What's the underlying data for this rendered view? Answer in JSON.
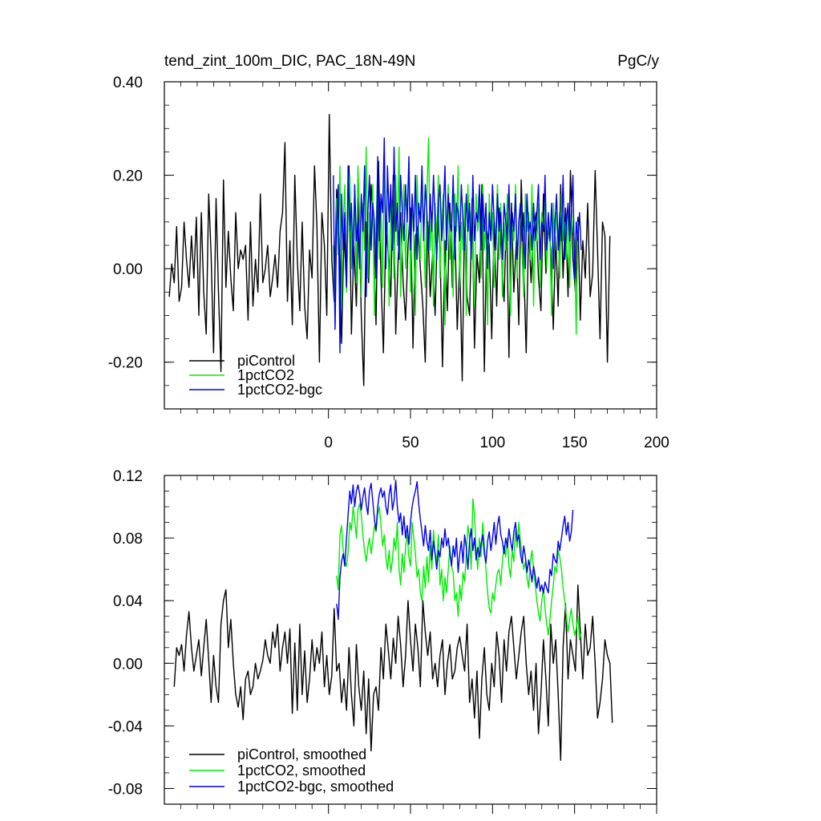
{
  "chart_data": [
    {
      "type": "line",
      "title": "tend_zint_100m_DIC, PAC_18N-49N",
      "units_label": "PgC/y",
      "xlim": [
        -100,
        200
      ],
      "ylim": [
        -0.3,
        0.4
      ],
      "x_ticks": [
        0,
        50,
        100,
        150,
        200
      ],
      "y_ticks": [
        -0.2,
        0.0,
        0.2,
        0.4
      ],
      "x_tick_labels": [
        "0",
        "50",
        "100",
        "150",
        "200"
      ],
      "y_tick_labels": [
        "-0.20",
        "0.00",
        "0.20",
        "0.40"
      ],
      "legend": [
        "piControl",
        "1pctCO2",
        "1pctCO2-bgc"
      ],
      "series": [
        {
          "name": "piControl",
          "color": "#000000",
          "x_start": -97,
          "x_step": 1.5,
          "values": [
            -0.06,
            0.01,
            -0.03,
            0.09,
            -0.07,
            -0.04,
            0.1,
            0.02,
            -0.04,
            0.07,
            -0.02,
            0.11,
            -0.1,
            0.12,
            -0.05,
            -0.14,
            0.16,
            0.03,
            -0.18,
            0.15,
            -0.05,
            -0.22,
            0.19,
            -0.04,
            0.08,
            -0.02,
            -0.09,
            0.12,
            0.0,
            0.04,
            0.02,
            0.05,
            -0.11,
            0.1,
            -0.08,
            0.02,
            -0.05,
            0.16,
            -0.03,
            0.0,
            0.05,
            -0.06,
            -0.02,
            0.03,
            -0.04,
            0.08,
            0.12,
            0.27,
            -0.07,
            0.06,
            -0.12,
            0.2,
            0.02,
            -0.09,
            0.1,
            -0.08,
            -0.15,
            0.04,
            -0.02,
            0.22,
            0.09,
            -0.2,
            0.12,
            0.05,
            -0.1,
            0.33,
            0.02,
            -0.07,
            0.17,
            0.06,
            -0.16,
            0.08,
            -0.04,
            0.22,
            -0.14,
            0.05,
            -0.08,
            0.16,
            -0.1,
            -0.25,
            0.1,
            -0.03,
            0.18,
            0.08,
            -0.12,
            0.23,
            -0.02,
            -0.18,
            0.09,
            0.03,
            -0.06,
            0.2,
            -0.14,
            0.02,
            0.12,
            -0.03,
            -0.11,
            0.05,
            0.13,
            -0.17,
            0.07,
            0.09,
            0.0,
            -0.08,
            -0.2,
            0.1,
            -0.06,
            0.03,
            -0.1,
            0.11,
            0.04,
            -0.21,
            0.06,
            -0.09,
            0.14,
            -0.04,
            0.09,
            -0.13,
            0.02,
            -0.24,
            0.12,
            -0.06,
            -0.1,
            0.15,
            -0.17,
            0.03,
            -0.03,
            0.18,
            -0.22,
            0.08,
            0.05,
            -0.15,
            0.1,
            -0.08,
            0.13,
            0.02,
            -0.07,
            0.12,
            -0.19,
            0.14,
            -0.05,
            0.06,
            -0.12,
            0.19,
            0.01,
            -0.18,
            0.09,
            -0.03,
            0.08,
            0.12,
            -0.02,
            -0.09,
            0.16,
            -0.01,
            0.09,
            0.04,
            -0.13,
            0.07,
            -0.08,
            0.18,
            -0.02,
            0.13,
            -0.06,
            0.21,
            0.02,
            -0.05,
            0.11,
            -0.11,
            0.06,
            -0.02,
            0.14,
            -0.06,
            -0.01,
            0.21,
            0.04,
            -0.15,
            0.1,
            0.07,
            -0.2,
            0.07
          ]
        },
        {
          "name": "1pctCO2",
          "color": "#00ee00",
          "x_start": 3,
          "x_step": 1,
          "values": [
            0.05,
            -0.12,
            0.15,
            0.03,
            0.22,
            -0.08,
            0.1,
            0.18,
            -0.05,
            0.12,
            0.2,
            0.0,
            0.08,
            0.16,
            -0.03,
            0.22,
            0.1,
            -0.06,
            0.14,
            0.04,
            0.26,
            -0.02,
            0.12,
            0.05,
            0.18,
            -0.1,
            0.08,
            0.22,
            0.02,
            0.14,
            -0.04,
            0.24,
            0.06,
            0.1,
            -0.08,
            0.16,
            0.12,
            -0.02,
            0.2,
            0.05,
            0.26,
            -0.06,
            0.08,
            0.18,
            0.0,
            0.12,
            0.23,
            -0.05,
            0.15,
            0.06,
            -0.1,
            0.2,
            0.08,
            0.02,
            0.18,
            0.1,
            -0.04,
            0.16,
            0.28,
            0.04,
            0.12,
            -0.08,
            0.14,
            0.06,
            0.2,
            -0.02,
            0.1,
            0.16,
            -0.12,
            0.08,
            0.18,
            0.02,
            0.12,
            -0.06,
            0.16,
            0.08,
            0.22,
            -0.04,
            0.1,
            0.04,
            0.14,
            -0.1,
            0.18,
            0.06,
            0.12,
            0.02,
            -0.08,
            0.16,
            0.08,
            0.14,
            -0.02,
            0.18,
            0.04,
            0.1,
            -0.12,
            0.16,
            0.06,
            0.12,
            -0.04,
            0.08,
            0.18,
            0.02,
            0.14,
            -0.06,
            0.1,
            0.04,
            0.16,
            0.08,
            -0.1,
            0.12,
            0.06,
            0.18,
            -0.02,
            0.1,
            0.14,
            0.04,
            -0.06,
            0.16,
            0.08,
            0.12,
            0.02,
            0.18,
            -0.08,
            0.1,
            0.06,
            0.14,
            -0.04,
            0.12,
            0.08,
            0.16,
            0.0,
            0.1,
            0.06,
            -0.1,
            0.14,
            0.04,
            0.12,
            0.08,
            -0.02,
            0.16,
            0.06,
            0.1,
            0.02,
            0.14,
            -0.04,
            0.12,
            0.08,
            0.06,
            -0.14,
            0.1
          ]
        },
        {
          "name": "1pctCO2-bgc",
          "color": "#0000ee",
          "x_start": 3,
          "x_step": 1,
          "values": [
            0.2,
            -0.13,
            0.1,
            0.18,
            -0.18,
            0.16,
            0.04,
            0.12,
            -0.04,
            0.22,
            0.08,
            0.14,
            -0.02,
            0.18,
            0.06,
            0.1,
            0.0,
            0.16,
            0.08,
            0.22,
            -0.06,
            0.12,
            0.2,
            0.04,
            0.14,
            0.1,
            -0.02,
            0.24,
            0.06,
            0.16,
            0.12,
            0.28,
            0.0,
            0.22,
            0.1,
            0.18,
            0.04,
            0.26,
            0.08,
            0.14,
            0.02,
            0.2,
            0.12,
            0.06,
            0.18,
            0.1,
            0.24,
            0.04,
            0.16,
            0.08,
            0.2,
            0.02,
            0.14,
            0.1,
            0.22,
            0.06,
            0.18,
            0.12,
            0.04,
            0.16,
            0.08,
            0.2,
            0.1,
            0.02,
            0.14,
            0.18,
            0.06,
            0.12,
            0.22,
            0.04,
            0.16,
            0.1,
            0.08,
            0.2,
            0.02,
            0.14,
            0.12,
            0.06,
            0.18,
            0.1,
            0.04,
            0.16,
            0.08,
            0.14,
            0.02,
            0.2,
            0.06,
            0.12,
            0.1,
            0.18,
            0.04,
            0.16,
            0.08,
            0.14,
            0.0,
            0.12,
            0.06,
            0.18,
            0.1,
            0.04,
            0.16,
            0.08,
            0.12,
            0.02,
            0.14,
            0.1,
            0.06,
            0.18,
            0.04,
            0.12,
            0.08,
            0.16,
            0.02,
            0.1,
            0.14,
            0.06,
            0.12,
            0.0,
            0.16,
            0.08,
            0.1,
            0.04,
            0.14,
            0.06,
            0.12,
            0.18,
            0.02,
            0.1,
            0.08,
            0.2,
            0.04,
            0.12,
            0.06,
            0.14,
            0.0,
            0.1,
            0.16,
            0.04,
            0.12,
            0.06,
            0.2,
            0.02,
            0.1,
            0.14,
            0.06,
            0.12,
            0.2,
            -0.02,
            0.1,
            0.06,
            0.12,
            0.04
          ]
        }
      ]
    },
    {
      "type": "line",
      "title": "",
      "xlim": [
        -100,
        200
      ],
      "ylim": [
        -0.09,
        0.12
      ],
      "x_ticks": [
        0,
        50,
        100,
        150,
        200
      ],
      "y_ticks": [
        -0.08,
        -0.04,
        0.0,
        0.04,
        0.08,
        0.12
      ],
      "y_tick_labels": [
        "-0.08",
        "-0.04",
        "0.00",
        "0.04",
        "0.08",
        "0.12"
      ],
      "legend": [
        "piControl, smoothed",
        "1pctCO2, smoothed",
        "1pctCO2-bgc, smoothed"
      ],
      "series": [
        {
          "name": "piControl, smoothed",
          "color": "#000000",
          "x_start": -94,
          "x_step": 1.5,
          "values": [
            -0.015,
            0.01,
            0.005,
            0.012,
            -0.005,
            0.018,
            0.033,
            0.01,
            -0.005,
            0.005,
            0.015,
            -0.008,
            0.01,
            0.028,
            0.002,
            -0.025,
            0.005,
            -0.015,
            -0.025,
            0.025,
            0.04,
            0.047,
            0.01,
            0.028,
            0.0,
            -0.02,
            -0.028,
            -0.015,
            -0.036,
            -0.01,
            -0.005,
            -0.02,
            -0.015,
            0.0,
            -0.01,
            -0.005,
            0.002,
            0.015,
            0.005,
            0.0,
            0.02,
            0.01,
            0.025,
            -0.005,
            0.01,
            0.02,
            0.0,
            0.022,
            -0.032,
            0.013,
            -0.03,
            0.025,
            -0.02,
            0.008,
            -0.025,
            -0.01,
            0.015,
            -0.005,
            0.01,
            0.0,
            0.02,
            -0.015,
            0.005,
            -0.02,
            -0.008,
            0.035,
            -0.005,
            0.0,
            -0.025,
            -0.01,
            -0.03,
            0.01,
            -0.02,
            -0.04,
            0.012,
            -0.015,
            -0.03,
            -0.005,
            -0.045,
            -0.01,
            -0.056,
            -0.02,
            -0.015,
            -0.03,
            0.01,
            -0.01,
            0.025,
            0.008,
            -0.01,
            0.016,
            0.0,
            0.03,
            0.012,
            -0.015,
            0.005,
            0.04,
            0.015,
            -0.005,
            0.025,
            0.01,
            -0.015,
            0.04,
            0.02,
            0.005,
            0.02,
            -0.01,
            0.0,
            -0.015,
            0.005,
            0.015,
            -0.02,
            0.0,
            0.012,
            -0.01,
            -0.005,
            0.01,
            0.017,
            0.005,
            -0.005,
            0.025,
            -0.025,
            -0.01,
            -0.035,
            -0.005,
            -0.048,
            -0.01,
            0.01,
            -0.02,
            -0.03,
            0.0,
            -0.015,
            0.02,
            0.005,
            -0.025,
            0.015,
            -0.005,
            0.02,
            0.03,
            0.01,
            -0.01,
            0.005,
            0.02,
            0.03,
            0.0,
            -0.02,
            -0.005,
            -0.03,
            0.0,
            -0.045,
            -0.02,
            0.015,
            -0.01,
            -0.04,
            0.025,
            0.0,
            0.015,
            -0.02,
            -0.062,
            0.01,
            0.038,
            -0.01,
            0.015,
            0.005,
            -0.005,
            0.05,
            0.02,
            -0.01,
            0.025,
            0.005,
            0.01,
            0.03,
            0.0,
            -0.035,
            -0.025,
            -0.01,
            0.015,
            0.005,
            0.0,
            -0.038
          ]
        },
        {
          "name": "1pctCO2, smoothed",
          "color": "#00ee00",
          "x_start": 5,
          "x_step": 1,
          "values": [
            0.056,
            0.047,
            0.082,
            0.088,
            0.072,
            0.065,
            0.062,
            0.071,
            0.09,
            0.085,
            0.1,
            0.092,
            0.08,
            0.098,
            0.102,
            0.095,
            0.082,
            0.072,
            0.065,
            0.074,
            0.08,
            0.07,
            0.078,
            0.088,
            0.084,
            0.095,
            0.1,
            0.088,
            0.075,
            0.082,
            0.068,
            0.06,
            0.072,
            0.058,
            0.066,
            0.08,
            0.072,
            0.09,
            0.06,
            0.05,
            0.07,
            0.058,
            0.075,
            0.082,
            0.068,
            0.062,
            0.09,
            0.08,
            0.07,
            0.055,
            0.06,
            0.045,
            0.04,
            0.062,
            0.048,
            0.068,
            0.052,
            0.075,
            0.06,
            0.085,
            0.07,
            0.065,
            0.082,
            0.05,
            0.06,
            0.04,
            0.055,
            0.045,
            0.06,
            0.075,
            0.062,
            0.058,
            0.04,
            0.045,
            0.03,
            0.05,
            0.04,
            0.058,
            0.052,
            0.07,
            0.088,
            0.08,
            0.06,
            0.105,
            0.095,
            0.072,
            0.06,
            0.08,
            0.068,
            0.09,
            0.075,
            0.06,
            0.045,
            0.035,
            0.032,
            0.045,
            0.04,
            0.05,
            0.058,
            0.06,
            0.05,
            0.065,
            0.075,
            0.068,
            0.08,
            0.062,
            0.055,
            0.072,
            0.065,
            0.085,
            0.074,
            0.09,
            0.078,
            0.07,
            0.06,
            0.065,
            0.055,
            0.048,
            0.065,
            0.072,
            0.06,
            0.05,
            0.04,
            0.032,
            0.027,
            0.04,
            0.048,
            0.035,
            0.025,
            0.018,
            0.028,
            0.04,
            0.05,
            0.062,
            0.058,
            0.072,
            0.068,
            0.06,
            0.048,
            0.04,
            0.03,
            0.02,
            0.028,
            0.035,
            0.025,
            0.018,
            0.022,
            0.03,
            0.015,
            0.02
          ]
        },
        {
          "name": "1pctCO2-bgc, smoothed",
          "color": "#0000ee",
          "x_start": 5,
          "x_step": 1,
          "values": [
            0.038,
            0.028,
            0.055,
            0.065,
            0.07,
            0.062,
            0.08,
            0.095,
            0.11,
            0.102,
            0.114,
            0.1,
            0.11,
            0.114,
            0.108,
            0.098,
            0.106,
            0.112,
            0.102,
            0.095,
            0.11,
            0.115,
            0.104,
            0.092,
            0.085,
            0.1,
            0.108,
            0.112,
            0.106,
            0.11,
            0.1,
            0.095,
            0.108,
            0.114,
            0.098,
            0.104,
            0.117,
            0.1,
            0.09,
            0.096,
            0.082,
            0.094,
            0.08,
            0.088,
            0.076,
            0.09,
            0.1,
            0.106,
            0.11,
            0.116,
            0.102,
            0.092,
            0.084,
            0.075,
            0.088,
            0.078,
            0.072,
            0.085,
            0.066,
            0.078,
            0.07,
            0.06,
            0.072,
            0.068,
            0.08,
            0.074,
            0.086,
            0.075,
            0.08,
            0.07,
            0.062,
            0.075,
            0.068,
            0.08,
            0.058,
            0.07,
            0.078,
            0.064,
            0.082,
            0.074,
            0.06,
            0.078,
            0.086,
            0.072,
            0.08,
            0.066,
            0.074,
            0.068,
            0.076,
            0.082,
            0.07,
            0.064,
            0.078,
            0.084,
            0.072,
            0.08,
            0.09,
            0.076,
            0.088,
            0.094,
            0.082,
            0.078,
            0.07,
            0.08,
            0.074,
            0.086,
            0.078,
            0.072,
            0.084,
            0.09,
            0.078,
            0.082,
            0.07,
            0.064,
            0.075,
            0.068,
            0.058,
            0.066,
            0.06,
            0.052,
            0.062,
            0.056,
            0.048,
            0.055,
            0.046,
            0.05,
            0.045,
            0.052,
            0.048,
            0.045,
            0.06,
            0.056,
            0.07,
            0.066,
            0.064,
            0.078,
            0.072,
            0.08,
            0.088,
            0.094,
            0.082,
            0.09,
            0.078,
            0.084,
            0.098
          ]
        }
      ]
    }
  ]
}
